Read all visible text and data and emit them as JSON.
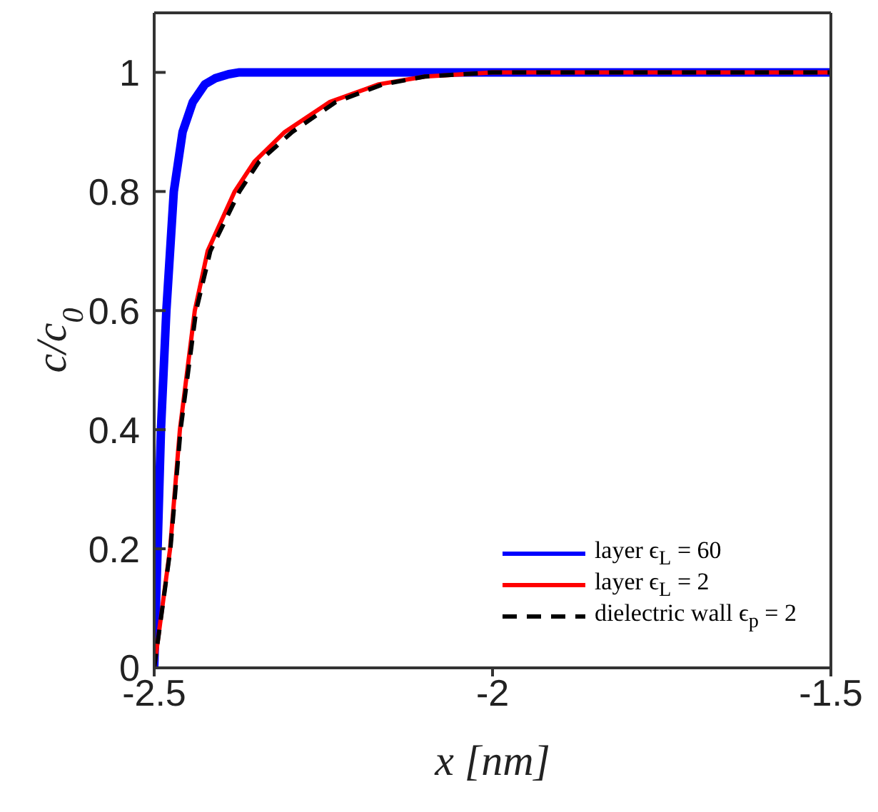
{
  "chart_data": {
    "type": "line",
    "xlabel": "x [nm]",
    "ylabel": "c/c$_{0}$",
    "xlim": [
      -2.5,
      -1.5
    ],
    "xticks": [
      -2.5,
      -2,
      -1.5
    ],
    "ylim": [
      0,
      1.1
    ],
    "yticks": [
      0,
      0.2,
      0.4,
      0.6,
      0.8,
      1
    ],
    "grid": false,
    "legend": "bottom right",
    "marker": "none",
    "series": [
      {
        "name": "layer ϵ$_{L}$ = 60",
        "color": "#0000ff",
        "line_style": "solid",
        "x": [
          -2.5,
          -2.495,
          -2.49,
          -2.482,
          -2.471,
          -2.458,
          -2.443,
          -2.425,
          -2.41,
          -2.39,
          -2.374,
          -2.3,
          -2.0,
          -1.5
        ],
        "values": [
          0,
          0.2,
          0.4,
          0.6,
          0.8,
          0.9,
          0.95,
          0.98,
          0.99,
          0.997,
          1,
          1,
          1,
          1
        ]
      },
      {
        "name": "layer ϵ$_{L}$ = 2",
        "color": "#ff0000",
        "line_style": "solid",
        "x": [
          -2.5,
          -2.4765,
          -2.462,
          -2.44,
          -2.421,
          -2.381,
          -2.352,
          -2.307,
          -2.241,
          -2.168,
          -2.1,
          -2.0,
          -1.5
        ],
        "values": [
          0,
          0.2,
          0.4,
          0.6,
          0.7,
          0.8,
          0.85,
          0.9,
          0.95,
          0.98,
          0.993,
          1,
          1
        ]
      },
      {
        "name": "dielectric wall ϵ$_{p}$ = 2",
        "color": "#000000",
        "line_style": "dashed",
        "x": [
          -2.5,
          -2.476,
          -2.461,
          -2.438,
          -2.417,
          -2.374,
          -2.345,
          -2.296,
          -2.232,
          -2.162,
          -2.1,
          -2.0,
          -1.5
        ],
        "values": [
          0,
          0.2,
          0.4,
          0.6,
          0.7,
          0.8,
          0.85,
          0.9,
          0.95,
          0.98,
          0.993,
          1,
          1
        ]
      }
    ]
  }
}
